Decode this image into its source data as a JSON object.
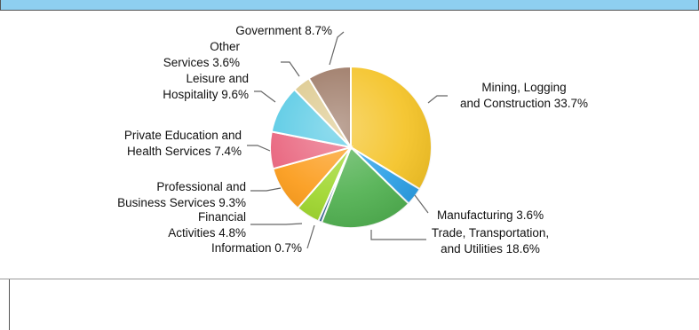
{
  "chart_data": {
    "type": "pie",
    "title": "",
    "slices": [
      {
        "label_lines": [
          "Mining, Logging",
          "and Construction 33.7%"
        ],
        "value": 33.7,
        "color": "#f4c223"
      },
      {
        "label_lines": [
          "Manufacturing 3.6%"
        ],
        "value": 3.6,
        "color": "#2a9fe6"
      },
      {
        "label_lines": [
          "Trade, Transportation,",
          "and Utilities 18.6%"
        ],
        "value": 18.6,
        "color": "#4fb04f"
      },
      {
        "label_lines": [
          "Information 0.7%"
        ],
        "value": 0.7,
        "color": "#2f5f8f"
      },
      {
        "label_lines": [
          "Financial",
          "Activities 4.8%"
        ],
        "value": 4.8,
        "color": "#9ed62b"
      },
      {
        "label_lines": [
          "Professional and",
          "Business Services 9.3%"
        ],
        "value": 9.3,
        "color": "#fb9a17"
      },
      {
        "label_lines": [
          "Private Education and",
          "Health Services 7.4%"
        ],
        "value": 7.4,
        "color": "#e8607a"
      },
      {
        "label_lines": [
          "Leisure and",
          "Hospitality 9.6%"
        ],
        "value": 9.6,
        "color": "#55c9e4"
      },
      {
        "label_lines": [
          "Other",
          "Services 3.6%"
        ],
        "value": 3.6,
        "color": "#dcc88b"
      },
      {
        "label_lines": [
          "Government 8.7%"
        ],
        "value": 8.7,
        "color": "#9a7561"
      }
    ]
  }
}
